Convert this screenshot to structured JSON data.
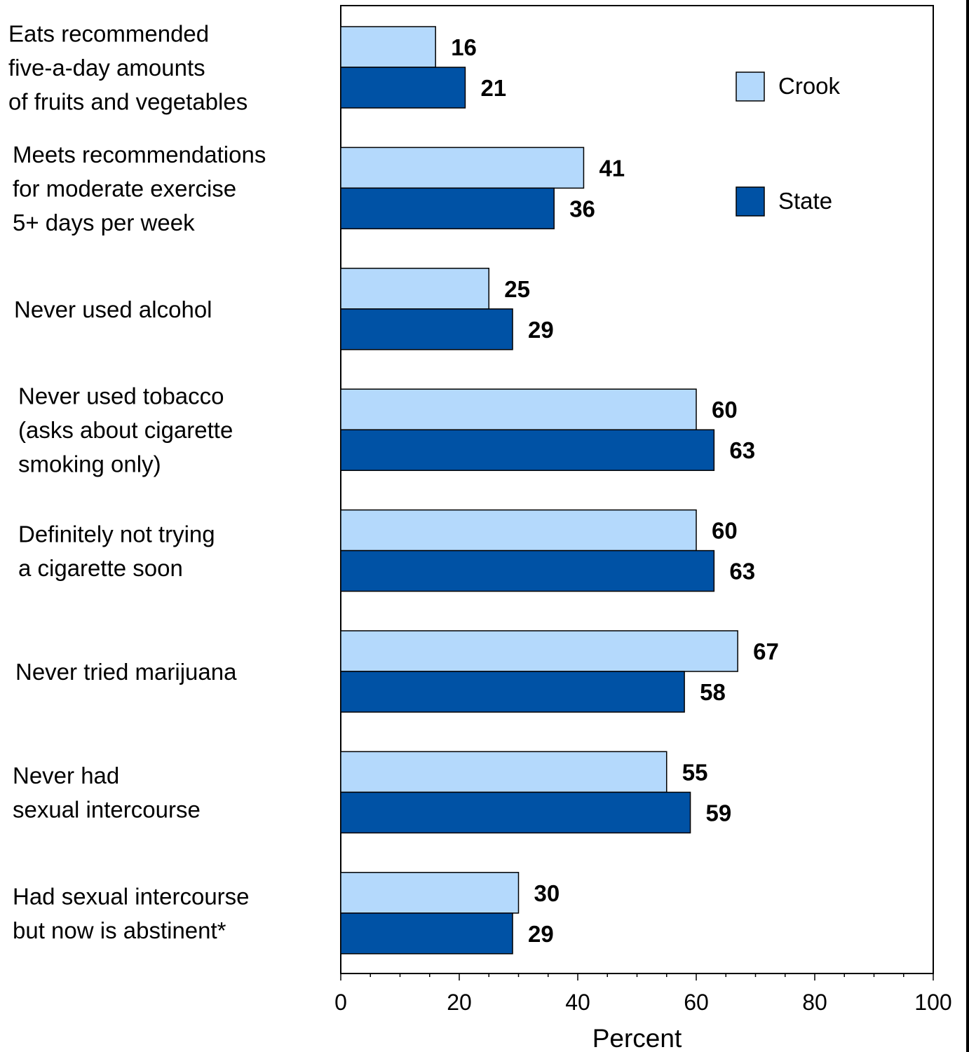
{
  "chart_data": {
    "type": "bar",
    "orientation": "horizontal",
    "categories": [
      [
        "Eats recommended",
        "five-a-day amounts",
        "of fruits and vegetables"
      ],
      [
        "Meets recommendations",
        "for moderate exercise",
        "5+ days per week"
      ],
      [
        "Never used alcohol"
      ],
      [
        "Never used tobacco",
        "(asks about cigarette",
        "smoking only)"
      ],
      [
        "Definitely not trying",
        "a cigarette soon"
      ],
      [
        "Never tried marijuana"
      ],
      [
        "Never had",
        "sexual intercourse"
      ],
      [
        "Had sexual intercourse",
        "but now is abstinent*"
      ]
    ],
    "series": [
      {
        "name": "Crook",
        "color": "#b4d9fc",
        "values": [
          16,
          41,
          25,
          60,
          60,
          67,
          55,
          30
        ]
      },
      {
        "name": "State",
        "color": "#0052a5",
        "values": [
          21,
          36,
          29,
          63,
          63,
          58,
          59,
          29
        ]
      }
    ],
    "xlabel": "Percent",
    "xlim": [
      0,
      100
    ],
    "xticks": [
      0,
      20,
      40,
      60,
      80,
      100
    ],
    "legend_position": "top-right",
    "grid": false
  }
}
